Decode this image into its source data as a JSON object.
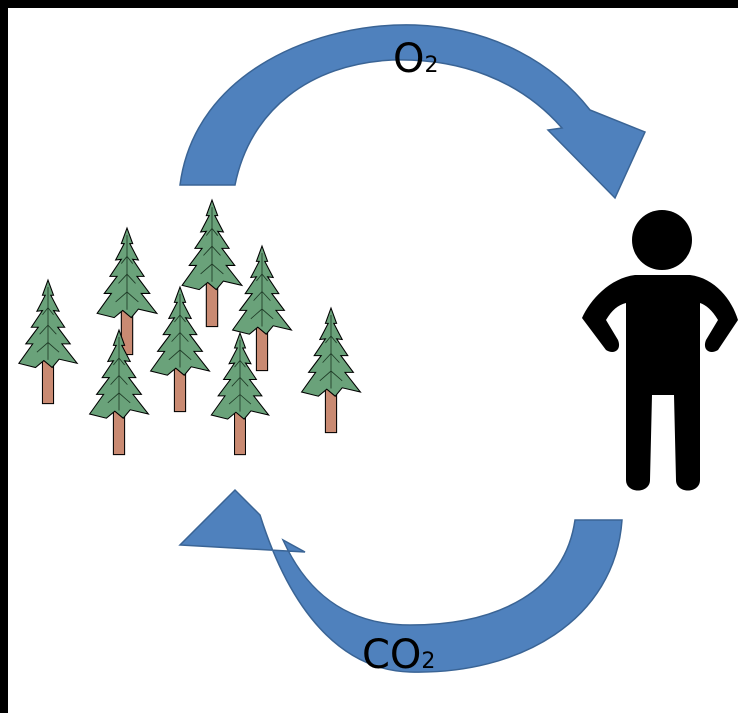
{
  "labels": {
    "top": {
      "main": "O",
      "sub": "2"
    },
    "bottom": {
      "main": "CO",
      "sub": "2"
    }
  }
}
